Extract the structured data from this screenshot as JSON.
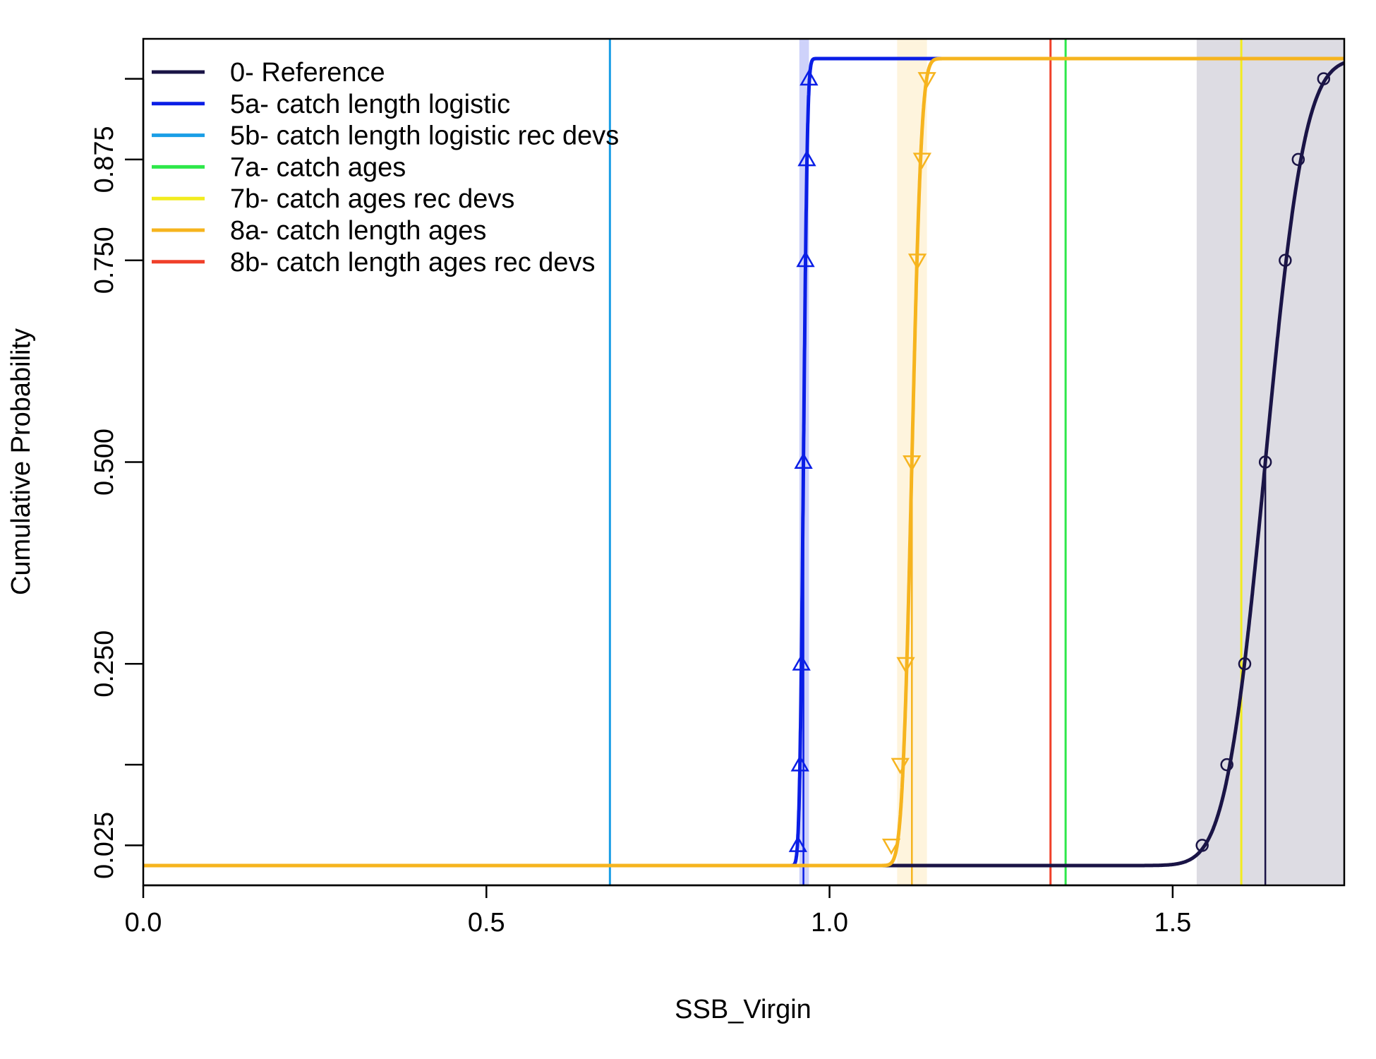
{
  "chart_data": {
    "type": "line",
    "xlabel": "SSB_Virgin",
    "ylabel": "Cumulative Probability",
    "xlim": [
      0,
      1.75
    ],
    "ylim": [
      0,
      1
    ],
    "x_ticks": [
      0.0,
      0.5,
      1.0,
      1.5
    ],
    "x_tick_labels": [
      "0.0",
      "0.5",
      "1.0",
      "1.5"
    ],
    "y_ticks": [
      0.025,
      0.125,
      0.25,
      0.5,
      0.75,
      0.875,
      0.975
    ],
    "y_tick_labels": [
      "0.025",
      "",
      "0.250",
      "0.500",
      "0.750",
      "0.875",
      ""
    ],
    "grid": false,
    "legend_position": "top-left",
    "series": [
      {
        "name": "0- Reference",
        "color": "#1a1446",
        "line_width": 5,
        "curve": "cdf",
        "mean": 1.635,
        "sd": 0.045,
        "median_line": 1.635,
        "shade": {
          "from": 1.535,
          "to": 1.75,
          "color": "#1a1446",
          "opacity": 0.15
        },
        "markers": "circle",
        "marker_points": [
          [
            1.543,
            0.025
          ],
          [
            1.579,
            0.125
          ],
          [
            1.605,
            0.25
          ],
          [
            1.635,
            0.5
          ],
          [
            1.664,
            0.75
          ],
          [
            1.683,
            0.875
          ],
          [
            1.72,
            0.975
          ]
        ]
      },
      {
        "name": "5a- catch length logistic",
        "color": "#0a1ee6",
        "line_width": 5,
        "curve": "cdf",
        "mean": 0.962,
        "sd": 0.0045,
        "median_line": 0.962,
        "shade": {
          "from": 0.956,
          "to": 0.97,
          "color": "#0a1ee6",
          "opacity": 0.2
        },
        "markers": "triangle-up",
        "marker_points": [
          [
            0.954,
            0.025
          ],
          [
            0.957,
            0.125
          ],
          [
            0.959,
            0.25
          ],
          [
            0.962,
            0.5
          ],
          [
            0.965,
            0.75
          ],
          [
            0.967,
            0.875
          ],
          [
            0.97,
            0.975
          ]
        ]
      },
      {
        "name": "5b- catch length logistic rec devs",
        "color": "#1a9ee6",
        "line_width": 3,
        "curve": "vline",
        "value": 0.68
      },
      {
        "name": "7a- catch ages",
        "color": "#2ee84a",
        "line_width": 3,
        "curve": "vline",
        "value": 1.344
      },
      {
        "name": "7b- catch ages rec devs",
        "color": "#f2ec1e",
        "line_width": 3,
        "curve": "vline",
        "value": 1.6
      },
      {
        "name": "8a- catch length ages",
        "color": "#f6b41e",
        "line_width": 5,
        "curve": "cdf",
        "mean": 1.12,
        "sd": 0.011,
        "median_line": 1.12,
        "shade": {
          "from": 1.0985,
          "to": 1.142,
          "color": "#f6b41e",
          "opacity": 0.15
        },
        "markers": "triangle-down",
        "marker_points": [
          [
            1.09,
            0.025
          ],
          [
            1.103,
            0.125
          ],
          [
            1.111,
            0.25
          ],
          [
            1.12,
            0.5
          ],
          [
            1.128,
            0.75
          ],
          [
            1.135,
            0.875
          ],
          [
            1.142,
            0.975
          ]
        ]
      },
      {
        "name": "8b- catch length ages rec devs",
        "color": "#f0402a",
        "line_width": 3,
        "curve": "vline",
        "value": 1.322
      }
    ]
  }
}
